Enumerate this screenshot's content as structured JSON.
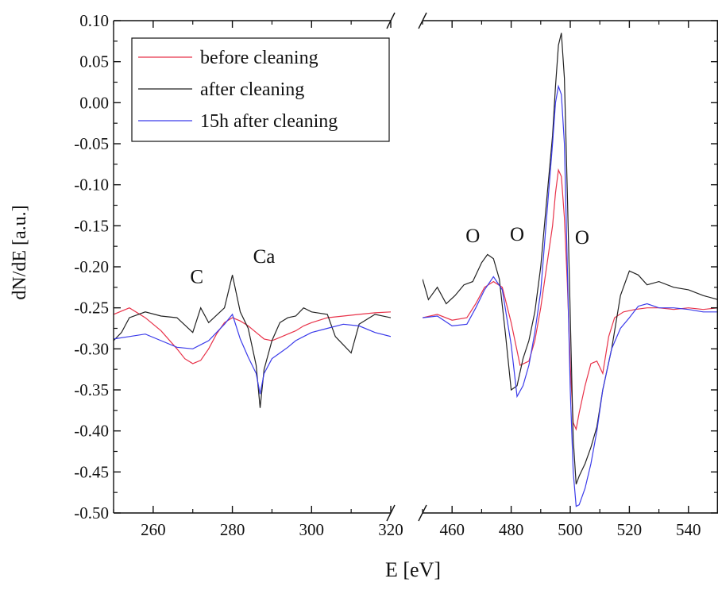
{
  "chart_data": {
    "type": "line",
    "title": "",
    "xlabel": "E [eV]",
    "ylabel": "dN/dE [a.u.]",
    "ylim": [
      -0.5,
      0.1
    ],
    "yticks": [
      "0.10",
      "0.05",
      "0.00",
      "-0.05",
      "-0.10",
      "-0.15",
      "-0.20",
      "-0.25",
      "-0.30",
      "-0.35",
      "-0.40",
      "-0.45",
      "-0.50"
    ],
    "x_segments": [
      {
        "xlim": [
          250,
          320
        ],
        "ticks": [
          "260",
          "280",
          "300",
          "320"
        ],
        "tick_values": [
          260,
          280,
          300,
          320
        ]
      },
      {
        "xlim": [
          450,
          550
        ],
        "ticks": [
          "460",
          "480",
          "500",
          "520",
          "540"
        ],
        "tick_values": [
          460,
          480,
          500,
          520,
          540
        ]
      }
    ],
    "axis_break": true,
    "grid": false,
    "legend_position": "top-left",
    "annotations": [
      {
        "text": "C",
        "x": 271,
        "y": -0.22
      },
      {
        "text": "Ca",
        "x": 288,
        "y": -0.195
      },
      {
        "text": "O",
        "x": 467,
        "y": -0.17
      },
      {
        "text": "O",
        "x": 482,
        "y": -0.168
      },
      {
        "text": "O",
        "x": 504,
        "y": -0.172
      }
    ],
    "series": [
      {
        "name": "before cleaning",
        "color": "#e8334a",
        "segments": [
          {
            "x": [
              250,
              254,
              258,
              262,
              266,
              268,
              270,
              272,
              274,
              276,
              278,
              280,
              282,
              284,
              286,
              288,
              290,
              292,
              294,
              296,
              298,
              300,
              304,
              308,
              312,
              316,
              320
            ],
            "y": [
              -0.258,
              -0.25,
              -0.262,
              -0.278,
              -0.3,
              -0.312,
              -0.318,
              -0.314,
              -0.3,
              -0.282,
              -0.268,
              -0.262,
              -0.266,
              -0.272,
              -0.28,
              -0.288,
              -0.29,
              -0.286,
              -0.282,
              -0.278,
              -0.272,
              -0.268,
              -0.262,
              -0.26,
              -0.258,
              -0.256,
              -0.255
            ]
          },
          {
            "x": [
              450,
              455,
              460,
              465,
              468,
              471,
              474,
              477,
              480,
              483,
              486,
              488,
              490,
              492,
              494,
              495,
              496,
              497,
              498,
              499,
              500,
              501,
              502,
              503,
              505,
              507,
              509,
              511,
              513,
              515,
              518,
              522,
              526,
              530,
              535,
              540,
              545,
              550
            ],
            "y": [
              -0.262,
              -0.258,
              -0.265,
              -0.262,
              -0.245,
              -0.225,
              -0.218,
              -0.225,
              -0.268,
              -0.32,
              -0.315,
              -0.29,
              -0.25,
              -0.2,
              -0.15,
              -0.11,
              -0.082,
              -0.09,
              -0.14,
              -0.22,
              -0.32,
              -0.39,
              -0.398,
              -0.378,
              -0.345,
              -0.318,
              -0.315,
              -0.33,
              -0.285,
              -0.262,
              -0.255,
              -0.252,
              -0.25,
              -0.25,
              -0.252,
              -0.25,
              -0.252,
              -0.25
            ]
          }
        ]
      },
      {
        "name": "after cleaning",
        "color": "#222222",
        "segments": [
          {
            "x": [
              250,
              252,
              254,
              258,
              262,
              266,
              270,
              272,
              274,
              278,
              280,
              282,
              284,
              286,
              287,
              288,
              290,
              292,
              294,
              296,
              298,
              300,
              304,
              306,
              308,
              310,
              312,
              316,
              320
            ],
            "y": [
              -0.29,
              -0.28,
              -0.262,
              -0.255,
              -0.26,
              -0.262,
              -0.28,
              -0.25,
              -0.268,
              -0.25,
              -0.21,
              -0.255,
              -0.275,
              -0.32,
              -0.372,
              -0.325,
              -0.29,
              -0.268,
              -0.262,
              -0.26,
              -0.25,
              -0.255,
              -0.258,
              -0.285,
              -0.295,
              -0.305,
              -0.27,
              -0.258,
              -0.262
            ]
          },
          {
            "x": [
              450,
              452,
              455,
              458,
              461,
              464,
              467,
              470,
              472,
              474,
              476,
              478,
              480,
              482,
              484,
              486,
              488,
              490,
              492,
              494,
              495,
              496,
              497,
              498,
              499,
              500,
              501,
              502,
              503,
              505,
              507,
              509,
              511,
              514,
              517,
              520,
              523,
              526,
              530,
              535,
              540,
              545,
              550
            ],
            "y": [
              -0.215,
              -0.24,
              -0.225,
              -0.245,
              -0.235,
              -0.222,
              -0.218,
              -0.195,
              -0.185,
              -0.19,
              -0.215,
              -0.28,
              -0.35,
              -0.345,
              -0.312,
              -0.29,
              -0.255,
              -0.2,
              -0.12,
              -0.04,
              0.02,
              0.07,
              0.085,
              0.03,
              -0.11,
              -0.26,
              -0.41,
              -0.465,
              -0.455,
              -0.44,
              -0.42,
              -0.395,
              -0.35,
              -0.3,
              -0.235,
              -0.205,
              -0.21,
              -0.222,
              -0.218,
              -0.225,
              -0.228,
              -0.235,
              -0.24
            ]
          }
        ]
      },
      {
        "name": "15h after cleaning",
        "color": "#3b3bea",
        "segments": [
          {
            "x": [
              250,
              254,
              258,
              262,
              266,
              270,
              274,
              278,
              280,
              282,
              284,
              286,
              287,
              288,
              290,
              292,
              294,
              296,
              298,
              300,
              304,
              308,
              312,
              316,
              320
            ],
            "y": [
              -0.288,
              -0.285,
              -0.282,
              -0.29,
              -0.298,
              -0.3,
              -0.29,
              -0.27,
              -0.258,
              -0.288,
              -0.31,
              -0.33,
              -0.355,
              -0.33,
              -0.312,
              -0.305,
              -0.298,
              -0.29,
              -0.285,
              -0.28,
              -0.275,
              -0.27,
              -0.272,
              -0.28,
              -0.285
            ]
          },
          {
            "x": [
              450,
              455,
              460,
              465,
              468,
              471,
              474,
              477,
              480,
              482,
              484,
              486,
              488,
              490,
              492,
              494,
              495,
              496,
              497,
              498,
              499,
              500,
              501,
              502,
              503,
              505,
              507,
              509,
              511,
              514,
              517,
              520,
              523,
              526,
              530,
              535,
              540,
              545,
              550
            ],
            "y": [
              -0.262,
              -0.26,
              -0.272,
              -0.27,
              -0.25,
              -0.228,
              -0.212,
              -0.228,
              -0.295,
              -0.358,
              -0.345,
              -0.32,
              -0.28,
              -0.23,
              -0.14,
              -0.05,
              0.0,
              0.02,
              0.01,
              -0.05,
              -0.2,
              -0.35,
              -0.45,
              -0.492,
              -0.49,
              -0.47,
              -0.44,
              -0.4,
              -0.35,
              -0.3,
              -0.275,
              -0.262,
              -0.248,
              -0.245,
              -0.25,
              -0.25,
              -0.252,
              -0.255,
              -0.255
            ]
          }
        ]
      }
    ]
  }
}
